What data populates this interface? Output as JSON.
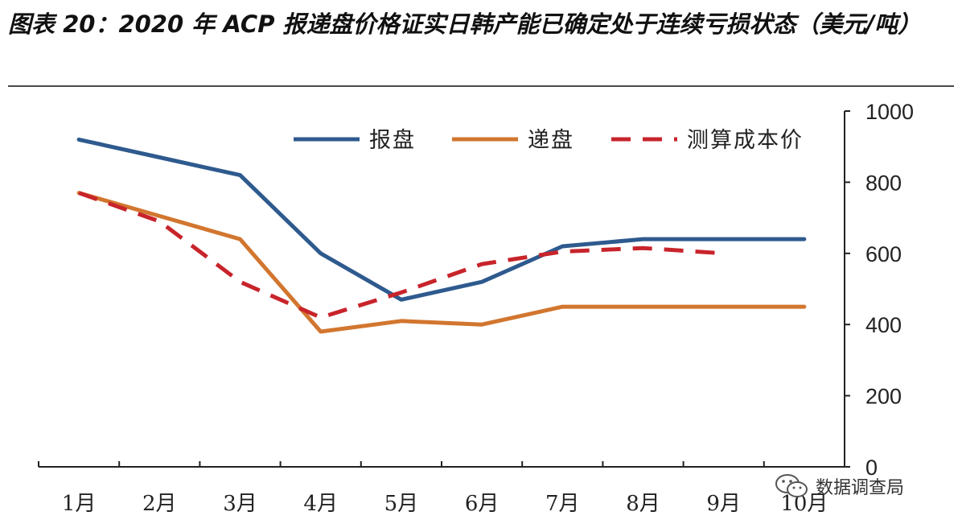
{
  "title": "图表 20：2020 年 ACP 报递盘价格证实日韩产能已确定处于连续亏损状态（美元/吨）",
  "chart_data": {
    "type": "line",
    "title": "图表 20：2020 年 ACP 报递盘价格证实日韩产能已确定处于连续亏损状态（美元/吨）",
    "categories": [
      "1月",
      "2月",
      "3月",
      "4月",
      "5月",
      "6月",
      "7月",
      "8月",
      "9月",
      "10月"
    ],
    "ylim": [
      0,
      1000
    ],
    "yticks": [
      0,
      200,
      400,
      600,
      800,
      1000
    ],
    "y_axis_position": "right",
    "grid": false,
    "legend_position": "top",
    "series": [
      {
        "name": "报盘",
        "values": [
          920,
          870,
          820,
          600,
          470,
          520,
          620,
          640,
          640,
          640
        ],
        "color": "#2e5a8e",
        "style": "solid"
      },
      {
        "name": "递盘",
        "values": [
          770,
          705,
          640,
          380,
          410,
          400,
          450,
          450,
          450,
          450
        ],
        "color": "#d2762f",
        "style": "solid"
      },
      {
        "name": "测算成本价",
        "values": [
          770,
          690,
          520,
          420,
          490,
          570,
          605,
          615,
          600,
          null
        ],
        "color": "#c8242b",
        "style": "dashed"
      }
    ]
  },
  "watermark": {
    "text": "数据调查局",
    "icon": "wechat-icon"
  }
}
